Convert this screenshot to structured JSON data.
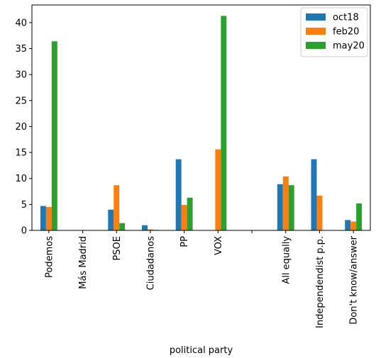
{
  "chart_data": {
    "type": "bar",
    "title": "",
    "xlabel": "political party",
    "ylabel": "",
    "categories": [
      "Podemos",
      "Más Madrid",
      "PSOE",
      "Ciudadanos",
      "PP",
      "VOX",
      "",
      "All equally",
      "Independendist p.p.",
      "Don't know/answer"
    ],
    "series": [
      {
        "name": "oct18",
        "color": "#1f77b4",
        "values": [
          4.7,
          0,
          4.0,
          1.0,
          13.7,
          0,
          0,
          8.9,
          13.7,
          2.0
        ]
      },
      {
        "name": "feb20",
        "color": "#ff7f0e",
        "values": [
          4.5,
          0,
          8.7,
          0.2,
          4.9,
          15.6,
          0,
          10.4,
          6.7,
          1.7
        ]
      },
      {
        "name": "may20",
        "color": "#2ca02c",
        "values": [
          36.4,
          0,
          1.4,
          0.1,
          6.3,
          41.3,
          0,
          8.7,
          0,
          5.2
        ]
      }
    ],
    "yticks": [
      "0",
      "5",
      "10",
      "15",
      "20",
      "25",
      "30",
      "35",
      "40"
    ],
    "ylim": [
      0,
      43.4
    ],
    "grid": false,
    "legend_position": "top-right"
  }
}
